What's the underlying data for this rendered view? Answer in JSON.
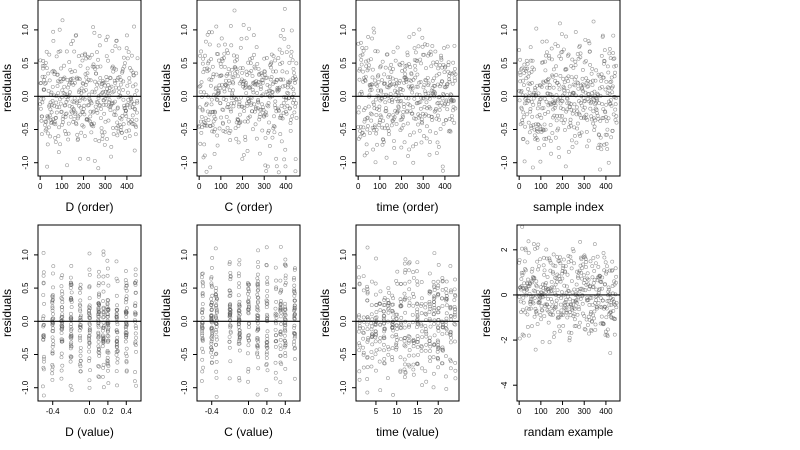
{
  "chart_data": [
    {
      "type": "scatter",
      "xlabel": "D (order)",
      "ylabel": "residuals",
      "xticks": [
        0,
        100,
        200,
        300,
        400
      ],
      "xlim": [
        -10,
        465
      ],
      "yticks": [
        -1.0,
        -0.5,
        0.0,
        0.5,
        1.0
      ],
      "ytick_labels": [
        "-1.0",
        "-0.5",
        "0.0",
        "0.5",
        "1.0"
      ],
      "ylim": [
        -1.2,
        1.45
      ],
      "ref_line": 0,
      "xmode": "index",
      "n": 450,
      "seed": 11
    },
    {
      "type": "scatter",
      "xlabel": "C (order)",
      "ylabel": "residuals",
      "xticks": [
        0,
        100,
        200,
        300,
        400
      ],
      "xlim": [
        -10,
        465
      ],
      "yticks": [
        -1.0,
        -0.5,
        0.0,
        0.5,
        1.0
      ],
      "ytick_labels": [
        "-1.0",
        "-0.5",
        "0.0",
        "0.5",
        "1.0"
      ],
      "ylim": [
        -1.2,
        1.45
      ],
      "ref_line": 0,
      "xmode": "index",
      "n": 450,
      "seed": 23
    },
    {
      "type": "scatter",
      "xlabel": "time (order)",
      "ylabel": "residuals",
      "xticks": [
        0,
        100,
        200,
        300,
        400
      ],
      "xlim": [
        -10,
        465
      ],
      "yticks": [
        -1.0,
        -0.5,
        0.0,
        0.5,
        1.0
      ],
      "ytick_labels": [
        "-1.0",
        "-0.5",
        "0.0",
        "0.5",
        "1.0"
      ],
      "ylim": [
        -1.2,
        1.45
      ],
      "ref_line": 0,
      "xmode": "index",
      "n": 450,
      "seed": 37
    },
    {
      "type": "scatter",
      "xlabel": "sample index",
      "ylabel": "residuals",
      "xticks": [
        0,
        100,
        200,
        300,
        400
      ],
      "xlim": [
        -10,
        465
      ],
      "yticks": [
        -1.0,
        -0.5,
        0.0,
        0.5,
        1.0
      ],
      "ytick_labels": [
        "-1.0",
        "-0.5",
        "0.0",
        "0.5",
        "1.0"
      ],
      "ylim": [
        -1.2,
        1.45
      ],
      "ref_line": 0,
      "xmode": "index",
      "n": 450,
      "seed": 41
    },
    {
      "type": "scatter",
      "xlabel": "D (value)",
      "ylabel": "residuals",
      "xticks": [
        -0.4,
        0.0,
        0.2,
        0.4
      ],
      "xtick_labels": [
        "-0.4",
        "0.0",
        "0.2",
        "0.4"
      ],
      "xlim": [
        -0.56,
        0.56
      ],
      "yticks": [
        -1.0,
        -0.5,
        0.0,
        0.5,
        1.0
      ],
      "ytick_labels": [
        "-1.0",
        "-0.5",
        "0.0",
        "0.5",
        "1.0"
      ],
      "ylim": [
        -1.2,
        1.45
      ],
      "ref_line": 0,
      "xmode": "levels",
      "x_levels": [
        -0.5,
        -0.4,
        -0.3,
        -0.2,
        -0.1,
        0.0,
        0.1,
        0.15,
        0.2,
        0.3,
        0.4,
        0.5
      ],
      "n": 450,
      "seed": 53
    },
    {
      "type": "scatter",
      "xlabel": "C (value)",
      "ylabel": "residuals",
      "xticks": [
        -0.4,
        0.0,
        0.2,
        0.4
      ],
      "xtick_labels": [
        "-0.4",
        "0.0",
        "0.2",
        "0.4"
      ],
      "xlim": [
        -0.56,
        0.56
      ],
      "yticks": [
        -1.0,
        -0.5,
        0.0,
        0.5,
        1.0
      ],
      "ytick_labels": [
        "-1.0",
        "-0.5",
        "0.0",
        "0.5",
        "1.0"
      ],
      "ylim": [
        -1.2,
        1.45
      ],
      "ref_line": 0,
      "xmode": "levels",
      "x_levels": [
        -0.5,
        -0.4,
        -0.35,
        -0.2,
        -0.1,
        0.0,
        0.1,
        0.2,
        0.3,
        0.35,
        0.4,
        0.5
      ],
      "n": 450,
      "seed": 67
    },
    {
      "type": "scatter",
      "xlabel": "time (value)",
      "ylabel": "residuals",
      "xticks": [
        5,
        10,
        15,
        20
      ],
      "xlim": [
        0.2,
        25
      ],
      "yticks": [
        -1.0,
        -0.5,
        0.0,
        0.5,
        1.0
      ],
      "ytick_labels": [
        "-1.0",
        "-0.5",
        "0.0",
        "0.5",
        "1.0"
      ],
      "ylim": [
        -1.2,
        1.45
      ],
      "ref_line": 0,
      "xmode": "levels",
      "x_levels": [
        1,
        2,
        3,
        4,
        5,
        6,
        7,
        8,
        9,
        10,
        11,
        12,
        13,
        14,
        15,
        16,
        17,
        18,
        19,
        20,
        21,
        22,
        23,
        24
      ],
      "n": 450,
      "seed": 79
    },
    {
      "type": "scatter",
      "xlabel": "randam example",
      "ylabel": "residuals",
      "xticks": [
        0,
        100,
        200,
        300,
        400
      ],
      "xlim": [
        -10,
        465
      ],
      "yticks": [
        -4,
        -2,
        0,
        2
      ],
      "ytick_labels": [
        "-4",
        "-2",
        "0",
        "2"
      ],
      "ylim": [
        -4.7,
        3.1
      ],
      "ref_line": 0,
      "xmode": "index",
      "n": 450,
      "seed": 97,
      "scale": 1.0
    }
  ]
}
